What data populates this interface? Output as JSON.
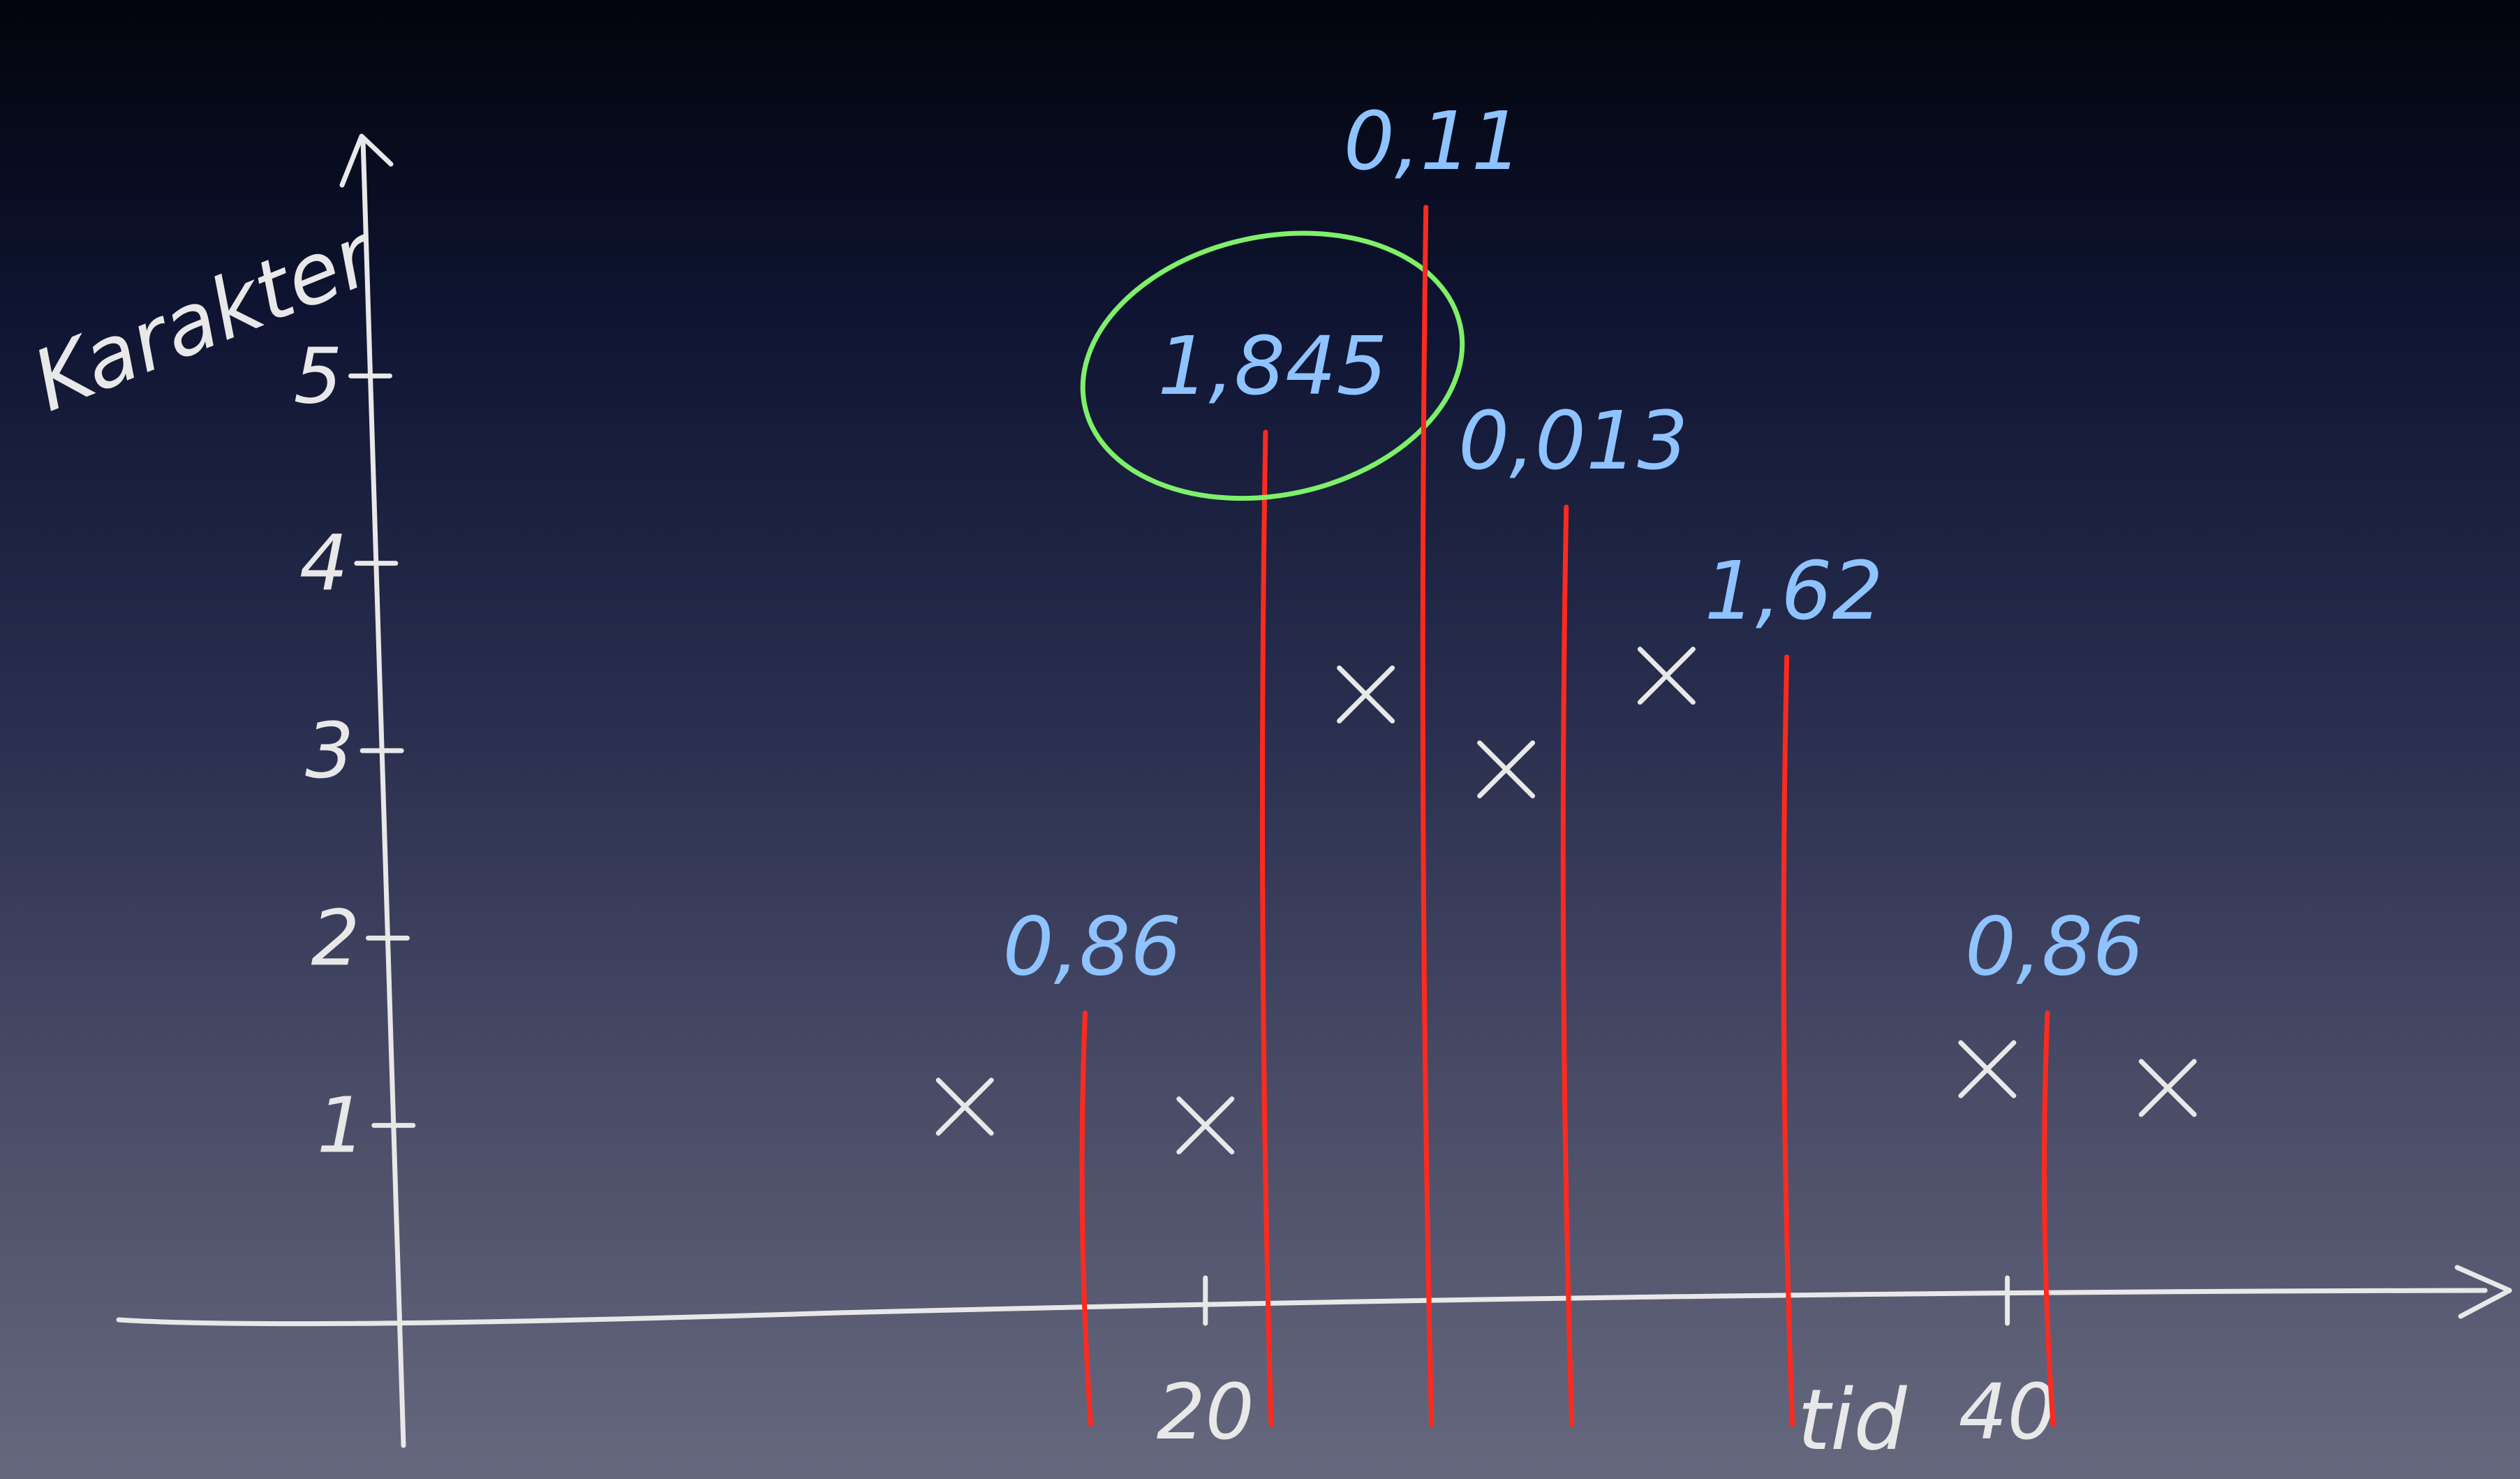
{
  "chart_data": {
    "type": "scatter",
    "ylabel": "Karakter",
    "xlabel": "tid",
    "y_ticks": [
      "1",
      "2",
      "3",
      "4",
      "5"
    ],
    "x_ticks": [
      {
        "value": 20,
        "label": "20"
      },
      {
        "value": 40,
        "label": "40"
      }
    ],
    "xlim": [
      0,
      50
    ],
    "ylim": [
      0,
      6
    ],
    "points": [
      {
        "x": 14,
        "y": 1.1
      },
      {
        "x": 20,
        "y": 1.0
      },
      {
        "x": 24,
        "y": 3.3
      },
      {
        "x": 27.5,
        "y": 2.9
      },
      {
        "x": 31.5,
        "y": 3.4
      },
      {
        "x": 39.5,
        "y": 1.3
      },
      {
        "x": 44,
        "y": 1.2
      }
    ],
    "splits": [
      {
        "x": 17,
        "label": "0,86",
        "top": 1.6,
        "highlight": false
      },
      {
        "x": 21.5,
        "label": "1,845",
        "top": 4.7,
        "highlight": true
      },
      {
        "x": 25.5,
        "label": "0,11",
        "top": 5.9,
        "highlight": false
      },
      {
        "x": 29,
        "label": "0,013",
        "top": 4.3,
        "highlight": false
      },
      {
        "x": 34.5,
        "label": "1,62",
        "top": 3.5,
        "highlight": false
      },
      {
        "x": 41,
        "label": "0,86",
        "top": 1.6,
        "highlight": false
      }
    ],
    "colors": {
      "axis": "#e8e8e8",
      "points": "#e8e8e8",
      "split_lines": "#ff2a1f",
      "split_labels": "#8fc3ff",
      "highlight_circle": "#7ef06a"
    }
  }
}
